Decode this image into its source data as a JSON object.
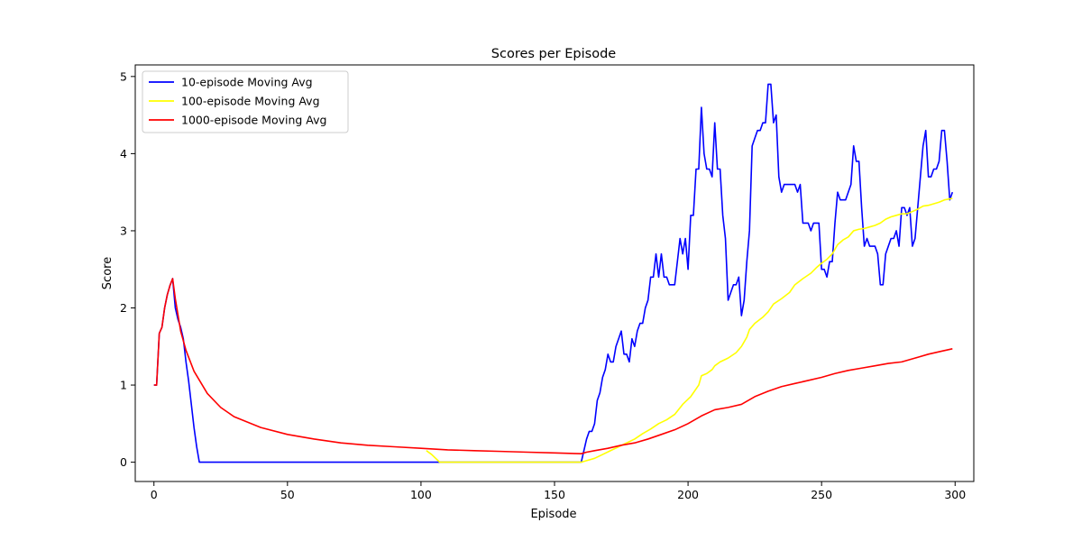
{
  "chart_data": {
    "type": "line",
    "title": "Scores per Episode",
    "xlabel": "Episode",
    "ylabel": "Score",
    "xlim": [
      -7,
      307
    ],
    "ylim": [
      -0.25,
      5.15
    ],
    "xticks": [
      0,
      50,
      100,
      150,
      200,
      250,
      300
    ],
    "yticks": [
      0,
      1,
      2,
      3,
      4,
      5
    ],
    "grid": false,
    "legend_position": "top-left",
    "series": [
      {
        "name": "10-episode Moving Avg",
        "color": "#0000ff",
        "points": [
          [
            0,
            1.0
          ],
          [
            1,
            1.0
          ],
          [
            2,
            1.67
          ],
          [
            3,
            1.75
          ],
          [
            4,
            2.0
          ],
          [
            5,
            2.17
          ],
          [
            6,
            2.29
          ],
          [
            7,
            2.38
          ],
          [
            8,
            2.0
          ],
          [
            9,
            1.85
          ],
          [
            10,
            1.75
          ],
          [
            11,
            1.6
          ],
          [
            12,
            1.3
          ],
          [
            13,
            1.05
          ],
          [
            14,
            0.75
          ],
          [
            15,
            0.45
          ],
          [
            16,
            0.2
          ],
          [
            17,
            0.0
          ],
          [
            160,
            0.0
          ],
          [
            161,
            0.15
          ],
          [
            162,
            0.3
          ],
          [
            163,
            0.4
          ],
          [
            164,
            0.4
          ],
          [
            165,
            0.5
          ],
          [
            166,
            0.8
          ],
          [
            167,
            0.9
          ],
          [
            168,
            1.1
          ],
          [
            169,
            1.2
          ],
          [
            170,
            1.4
          ],
          [
            171,
            1.3
          ],
          [
            172,
            1.3
          ],
          [
            173,
            1.5
          ],
          [
            174,
            1.6
          ],
          [
            175,
            1.7
          ],
          [
            176,
            1.4
          ],
          [
            177,
            1.4
          ],
          [
            178,
            1.3
          ],
          [
            179,
            1.6
          ],
          [
            180,
            1.5
          ],
          [
            181,
            1.7
          ],
          [
            182,
            1.8
          ],
          [
            183,
            1.8
          ],
          [
            184,
            2.0
          ],
          [
            185,
            2.1
          ],
          [
            186,
            2.4
          ],
          [
            187,
            2.4
          ],
          [
            188,
            2.7
          ],
          [
            189,
            2.4
          ],
          [
            190,
            2.7
          ],
          [
            191,
            2.4
          ],
          [
            192,
            2.4
          ],
          [
            193,
            2.3
          ],
          [
            194,
            2.3
          ],
          [
            195,
            2.3
          ],
          [
            196,
            2.6
          ],
          [
            197,
            2.9
          ],
          [
            198,
            2.7
          ],
          [
            199,
            2.9
          ],
          [
            200,
            2.5
          ],
          [
            201,
            3.2
          ],
          [
            202,
            3.2
          ],
          [
            203,
            3.8
          ],
          [
            204,
            3.8
          ],
          [
            205,
            4.6
          ],
          [
            206,
            4.0
          ],
          [
            207,
            3.8
          ],
          [
            208,
            3.8
          ],
          [
            209,
            3.7
          ],
          [
            210,
            4.4
          ],
          [
            211,
            3.8
          ],
          [
            212,
            3.8
          ],
          [
            213,
            3.2
          ],
          [
            214,
            2.9
          ],
          [
            215,
            2.1
          ],
          [
            216,
            2.2
          ],
          [
            217,
            2.3
          ],
          [
            218,
            2.3
          ],
          [
            219,
            2.4
          ],
          [
            220,
            1.9
          ],
          [
            221,
            2.1
          ],
          [
            222,
            2.6
          ],
          [
            223,
            3.0
          ],
          [
            224,
            4.1
          ],
          [
            225,
            4.2
          ],
          [
            226,
            4.3
          ],
          [
            227,
            4.3
          ],
          [
            228,
            4.4
          ],
          [
            229,
            4.4
          ],
          [
            230,
            4.9
          ],
          [
            231,
            4.9
          ],
          [
            232,
            4.4
          ],
          [
            233,
            4.5
          ],
          [
            234,
            3.7
          ],
          [
            235,
            3.5
          ],
          [
            236,
            3.6
          ],
          [
            237,
            3.6
          ],
          [
            238,
            3.6
          ],
          [
            239,
            3.6
          ],
          [
            240,
            3.6
          ],
          [
            241,
            3.5
          ],
          [
            242,
            3.6
          ],
          [
            243,
            3.1
          ],
          [
            244,
            3.1
          ],
          [
            245,
            3.1
          ],
          [
            246,
            3.0
          ],
          [
            247,
            3.1
          ],
          [
            248,
            3.1
          ],
          [
            249,
            3.1
          ],
          [
            250,
            2.5
          ],
          [
            251,
            2.5
          ],
          [
            252,
            2.4
          ],
          [
            253,
            2.6
          ],
          [
            254,
            2.6
          ],
          [
            255,
            3.1
          ],
          [
            256,
            3.5
          ],
          [
            257,
            3.4
          ],
          [
            258,
            3.4
          ],
          [
            259,
            3.4
          ],
          [
            260,
            3.5
          ],
          [
            261,
            3.6
          ],
          [
            262,
            4.1
          ],
          [
            263,
            3.9
          ],
          [
            264,
            3.9
          ],
          [
            265,
            3.3
          ],
          [
            266,
            2.8
          ],
          [
            267,
            2.9
          ],
          [
            268,
            2.8
          ],
          [
            269,
            2.8
          ],
          [
            270,
            2.8
          ],
          [
            271,
            2.7
          ],
          [
            272,
            2.3
          ],
          [
            273,
            2.3
          ],
          [
            274,
            2.7
          ],
          [
            275,
            2.8
          ],
          [
            276,
            2.9
          ],
          [
            277,
            2.9
          ],
          [
            278,
            3.0
          ],
          [
            279,
            2.8
          ],
          [
            280,
            3.3
          ],
          [
            281,
            3.3
          ],
          [
            282,
            3.2
          ],
          [
            283,
            3.3
          ],
          [
            284,
            2.8
          ],
          [
            285,
            2.9
          ],
          [
            286,
            3.3
          ],
          [
            287,
            3.7
          ],
          [
            288,
            4.1
          ],
          [
            289,
            4.3
          ],
          [
            290,
            3.7
          ],
          [
            291,
            3.7
          ],
          [
            292,
            3.8
          ],
          [
            293,
            3.8
          ],
          [
            294,
            3.9
          ],
          [
            295,
            4.3
          ],
          [
            296,
            4.3
          ],
          [
            297,
            3.9
          ],
          [
            298,
            3.4
          ],
          [
            299,
            3.5
          ]
        ]
      },
      {
        "name": "100-episode Moving Avg",
        "color": "#ffff00",
        "points": [
          [
            102,
            0.15
          ],
          [
            104,
            0.1
          ],
          [
            107,
            0.0
          ],
          [
            160,
            0.0
          ],
          [
            162,
            0.02
          ],
          [
            165,
            0.05
          ],
          [
            168,
            0.1
          ],
          [
            171,
            0.15
          ],
          [
            174,
            0.2
          ],
          [
            177,
            0.25
          ],
          [
            180,
            0.3
          ],
          [
            183,
            0.37
          ],
          [
            186,
            0.43
          ],
          [
            189,
            0.5
          ],
          [
            192,
            0.55
          ],
          [
            195,
            0.62
          ],
          [
            198,
            0.75
          ],
          [
            201,
            0.85
          ],
          [
            204,
            1.0
          ],
          [
            205,
            1.12
          ],
          [
            207,
            1.15
          ],
          [
            209,
            1.2
          ],
          [
            210,
            1.25
          ],
          [
            212,
            1.3
          ],
          [
            215,
            1.35
          ],
          [
            218,
            1.42
          ],
          [
            220,
            1.5
          ],
          [
            222,
            1.62
          ],
          [
            223,
            1.72
          ],
          [
            225,
            1.8
          ],
          [
            228,
            1.88
          ],
          [
            230,
            1.95
          ],
          [
            232,
            2.05
          ],
          [
            235,
            2.12
          ],
          [
            238,
            2.2
          ],
          [
            240,
            2.3
          ],
          [
            243,
            2.38
          ],
          [
            246,
            2.45
          ],
          [
            248,
            2.52
          ],
          [
            250,
            2.58
          ],
          [
            252,
            2.63
          ],
          [
            254,
            2.7
          ],
          [
            256,
            2.82
          ],
          [
            258,
            2.88
          ],
          [
            260,
            2.92
          ],
          [
            262,
            3.0
          ],
          [
            264,
            3.02
          ],
          [
            266,
            3.03
          ],
          [
            268,
            3.05
          ],
          [
            270,
            3.07
          ],
          [
            272,
            3.1
          ],
          [
            274,
            3.15
          ],
          [
            276,
            3.18
          ],
          [
            278,
            3.2
          ],
          [
            280,
            3.22
          ],
          [
            282,
            3.22
          ],
          [
            284,
            3.25
          ],
          [
            286,
            3.28
          ],
          [
            288,
            3.32
          ],
          [
            290,
            3.33
          ],
          [
            292,
            3.35
          ],
          [
            294,
            3.37
          ],
          [
            296,
            3.4
          ],
          [
            299,
            3.42
          ]
        ]
      },
      {
        "name": "1000-episode Moving Avg",
        "color": "#ff0000",
        "points": [
          [
            0,
            1.0
          ],
          [
            1,
            1.0
          ],
          [
            2,
            1.67
          ],
          [
            3,
            1.75
          ],
          [
            4,
            2.0
          ],
          [
            5,
            2.17
          ],
          [
            6,
            2.29
          ],
          [
            7,
            2.38
          ],
          [
            8,
            2.12
          ],
          [
            10,
            1.7
          ],
          [
            12,
            1.45
          ],
          [
            15,
            1.18
          ],
          [
            20,
            0.89
          ],
          [
            25,
            0.71
          ],
          [
            30,
            0.59
          ],
          [
            40,
            0.45
          ],
          [
            50,
            0.36
          ],
          [
            60,
            0.3
          ],
          [
            70,
            0.25
          ],
          [
            80,
            0.22
          ],
          [
            90,
            0.2
          ],
          [
            100,
            0.18
          ],
          [
            110,
            0.16
          ],
          [
            120,
            0.15
          ],
          [
            130,
            0.14
          ],
          [
            140,
            0.13
          ],
          [
            150,
            0.12
          ],
          [
            160,
            0.11
          ],
          [
            162,
            0.13
          ],
          [
            165,
            0.15
          ],
          [
            170,
            0.18
          ],
          [
            175,
            0.22
          ],
          [
            180,
            0.25
          ],
          [
            185,
            0.3
          ],
          [
            190,
            0.36
          ],
          [
            195,
            0.42
          ],
          [
            200,
            0.5
          ],
          [
            205,
            0.6
          ],
          [
            210,
            0.68
          ],
          [
            215,
            0.71
          ],
          [
            220,
            0.75
          ],
          [
            225,
            0.85
          ],
          [
            230,
            0.92
          ],
          [
            235,
            0.98
          ],
          [
            240,
            1.02
          ],
          [
            245,
            1.06
          ],
          [
            250,
            1.1
          ],
          [
            255,
            1.15
          ],
          [
            260,
            1.19
          ],
          [
            265,
            1.22
          ],
          [
            270,
            1.25
          ],
          [
            275,
            1.28
          ],
          [
            280,
            1.3
          ],
          [
            285,
            1.35
          ],
          [
            290,
            1.4
          ],
          [
            295,
            1.44
          ],
          [
            299,
            1.47
          ]
        ]
      }
    ]
  }
}
